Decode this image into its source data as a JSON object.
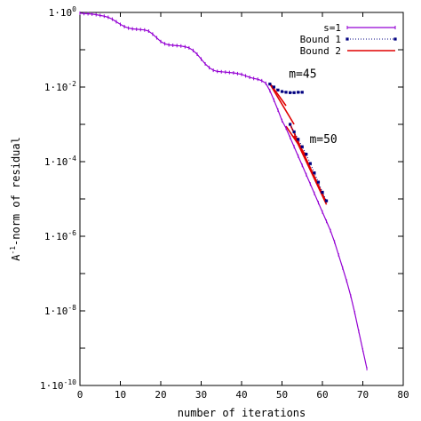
{
  "chart_data": {
    "type": "line",
    "xlabel": "number of iterations",
    "ylabel_base": "A",
    "ylabel_sup": "-1",
    "ylabel_rest": "-norm of residual",
    "xlim": [
      0,
      80
    ],
    "ylim_log10": [
      -10,
      0
    ],
    "y_scale": "log",
    "grid": false,
    "legend_position": "top-right",
    "x_ticks": [
      0,
      10,
      20,
      30,
      40,
      50,
      60,
      70,
      80
    ],
    "y_ticks": [
      {
        "exp": 0,
        "base": "1·10",
        "sup": "0"
      },
      {
        "exp": -2,
        "base": "1·10",
        "sup": "-2"
      },
      {
        "exp": -4,
        "base": "1·10",
        "sup": "-4"
      },
      {
        "exp": -6,
        "base": "1·10",
        "sup": "-6"
      },
      {
        "exp": -8,
        "base": "1·10",
        "sup": "-8"
      },
      {
        "exp": -10,
        "base": "1·10",
        "sup": "-10"
      }
    ],
    "series": [
      {
        "name": "s=1",
        "color": "#9400d3",
        "style": "line-with-ticks",
        "x": [
          0,
          1,
          2,
          3,
          4,
          5,
          6,
          7,
          8,
          9,
          10,
          11,
          12,
          13,
          14,
          15,
          16,
          17,
          18,
          19,
          20,
          21,
          22,
          23,
          24,
          25,
          26,
          27,
          28,
          29,
          30,
          31,
          32,
          33,
          34,
          35,
          36,
          37,
          38,
          39,
          40,
          41,
          42,
          43,
          44,
          45,
          46,
          47,
          48,
          49,
          50,
          51,
          52,
          53,
          54,
          55,
          56,
          57,
          58,
          59,
          60,
          61,
          62,
          63,
          64,
          65,
          66,
          67,
          68,
          69,
          70,
          71
        ],
        "log10_y": [
          -0.02,
          -0.03,
          -0.035,
          -0.045,
          -0.06,
          -0.08,
          -0.1,
          -0.13,
          -0.18,
          -0.25,
          -0.32,
          -0.38,
          -0.42,
          -0.44,
          -0.45,
          -0.46,
          -0.47,
          -0.5,
          -0.58,
          -0.68,
          -0.78,
          -0.84,
          -0.87,
          -0.88,
          -0.89,
          -0.9,
          -0.92,
          -0.95,
          -1.02,
          -1.12,
          -1.25,
          -1.38,
          -1.48,
          -1.55,
          -1.58,
          -1.59,
          -1.6,
          -1.61,
          -1.62,
          -1.64,
          -1.66,
          -1.7,
          -1.74,
          -1.77,
          -1.79,
          -1.83,
          -1.9,
          -2.1,
          -2.35,
          -2.62,
          -2.9,
          -3.1,
          -3.35,
          -3.6,
          -3.85,
          -4.1,
          -4.35,
          -4.6,
          -4.85,
          -5.1,
          -5.35,
          -5.6,
          -5.85,
          -6.15,
          -6.5,
          -6.85,
          -7.2,
          -7.6,
          -8.05,
          -8.55,
          -9.05,
          -9.55
        ]
      },
      {
        "name": "Bound 1",
        "color": "#000080",
        "style": "dotted-squares",
        "segments": [
          {
            "x": [
              47,
              48,
              49,
              50,
              51,
              52,
              53,
              54,
              55
            ],
            "log10_y": [
              -1.92,
              -2.0,
              -2.08,
              -2.12,
              -2.14,
              -2.15,
              -2.15,
              -2.14,
              -2.14
            ]
          },
          {
            "x": [
              52,
              53,
              54,
              55,
              56,
              57,
              58,
              59,
              60,
              61
            ],
            "log10_y": [
              -3.0,
              -3.2,
              -3.4,
              -3.6,
              -3.8,
              -4.05,
              -4.3,
              -4.55,
              -4.82,
              -5.05
            ]
          }
        ]
      },
      {
        "name": "Bound 2",
        "color": "#e00000",
        "style": "solid",
        "segments": [
          {
            "x": [
              47,
              51
            ],
            "log10_y": [
              -1.9,
              -2.5
            ]
          },
          {
            "x": [
              47,
              53
            ],
            "log10_y": [
              -1.92,
              -3.0
            ]
          },
          {
            "x": [
              51,
              56
            ],
            "log10_y": [
              -3.05,
              -3.85
            ]
          },
          {
            "x": [
              52,
              61
            ],
            "log10_y": [
              -3.0,
              -5.1
            ]
          },
          {
            "x": [
              53,
              61
            ],
            "log10_y": [
              -3.3,
              -5.15
            ]
          }
        ]
      }
    ],
    "annotations": [
      {
        "text": "m=45",
        "x": 51.7,
        "log10_y": -1.75
      },
      {
        "text": "m=50",
        "x": 56.8,
        "log10_y": -3.5
      }
    ]
  }
}
